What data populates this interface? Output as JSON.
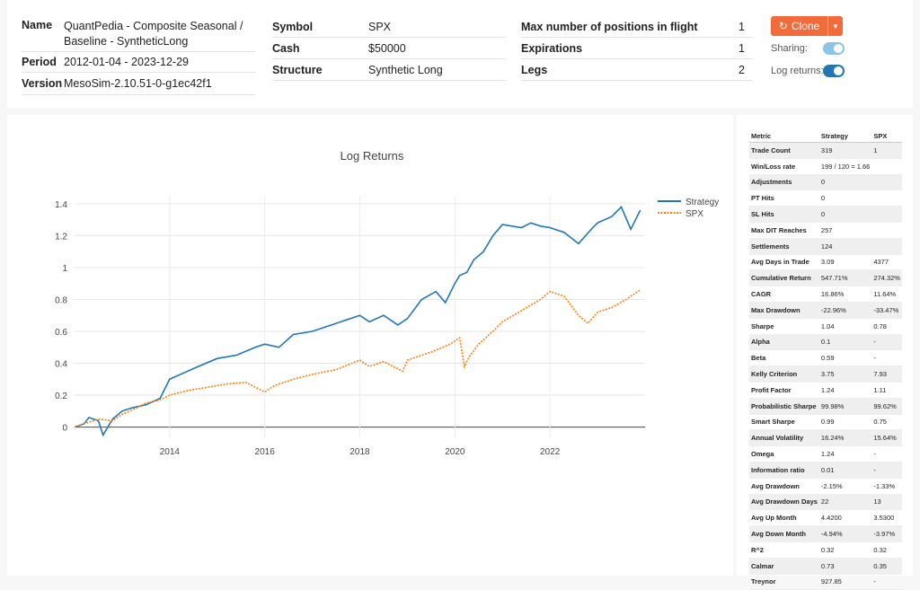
{
  "info": {
    "col1": [
      {
        "key": "Name",
        "value_line1": "QuantPedia - Composite Seasonal /",
        "value_line2": "Baseline - SyntheticLong"
      },
      {
        "key": "Period",
        "value": "2012-01-04 - 2023-12-29"
      },
      {
        "key": "Version",
        "value": "MesoSim-2.10.51-0-g1ec42f1"
      }
    ],
    "col2": [
      {
        "key": "Symbol",
        "value": "SPX"
      },
      {
        "key": "Cash",
        "value": "$50000"
      },
      {
        "key": "Structure",
        "value": "Synthetic Long"
      }
    ],
    "col3": [
      {
        "key": "Max number of positions in flight",
        "value": "1"
      },
      {
        "key": "Expirations",
        "value": "1"
      },
      {
        "key": "Legs",
        "value": "2"
      }
    ]
  },
  "controls": {
    "clone_label": "Clone",
    "sharing_label": "Sharing:",
    "log_returns_label": "Log returns:",
    "accent": "#f26b3a",
    "toggle_on_color": "#1f77b4",
    "toggle_sharing_color": "#8cc4e8"
  },
  "chart_data": {
    "type": "line",
    "title": "Log Returns",
    "xlabel": "",
    "ylabel": "",
    "xlim": [
      2012.0,
      2024.0
    ],
    "ylim": [
      -0.07,
      1.45
    ],
    "yticks": [
      0,
      0.2,
      0.4,
      0.6,
      0.8,
      1,
      1.2,
      1.4
    ],
    "ytick_labels": [
      "0",
      "0.2",
      "0.4",
      "0.6",
      "0.8",
      "1",
      "1.2",
      "1.4"
    ],
    "xticks": [
      2014,
      2016,
      2018,
      2020,
      2022
    ],
    "xtick_labels": [
      "2014",
      "2016",
      "2018",
      "2020",
      "2022"
    ],
    "grid": true,
    "legend": "top-right",
    "series": [
      {
        "name": "Strategy",
        "color": "#1f77b4",
        "style": "solid",
        "x": [
          2012.0,
          2012.2,
          2012.3,
          2012.5,
          2012.6,
          2012.8,
          2013.0,
          2013.2,
          2013.5,
          2013.8,
          2014.0,
          2014.3,
          2014.6,
          2015.0,
          2015.4,
          2015.8,
          2016.0,
          2016.3,
          2016.6,
          2017.0,
          2017.5,
          2018.0,
          2018.2,
          2018.5,
          2018.8,
          2019.0,
          2019.3,
          2019.6,
          2019.8,
          2020.0,
          2020.1,
          2020.25,
          2020.4,
          2020.6,
          2020.8,
          2021.0,
          2021.2,
          2021.4,
          2021.6,
          2021.8,
          2022.0,
          2022.3,
          2022.6,
          2022.9,
          2023.0,
          2023.3,
          2023.5,
          2023.7,
          2023.9
        ],
        "y": [
          0.0,
          0.02,
          0.06,
          0.04,
          -0.05,
          0.05,
          0.1,
          0.12,
          0.14,
          0.18,
          0.3,
          0.34,
          0.38,
          0.43,
          0.45,
          0.5,
          0.52,
          0.5,
          0.58,
          0.6,
          0.65,
          0.7,
          0.66,
          0.7,
          0.64,
          0.68,
          0.8,
          0.85,
          0.78,
          0.9,
          0.95,
          0.97,
          1.05,
          1.1,
          1.2,
          1.27,
          1.26,
          1.25,
          1.28,
          1.26,
          1.25,
          1.22,
          1.15,
          1.25,
          1.28,
          1.32,
          1.38,
          1.24,
          1.36
        ]
      },
      {
        "name": "SPX",
        "color": "#ff7f0e",
        "style": "dashed",
        "x": [
          2012.0,
          2012.3,
          2012.5,
          2012.8,
          2013.0,
          2013.3,
          2013.5,
          2013.8,
          2014.0,
          2014.4,
          2014.8,
          2015.2,
          2015.6,
          2016.0,
          2016.2,
          2016.6,
          2017.0,
          2017.5,
          2018.0,
          2018.2,
          2018.5,
          2018.9,
          2019.0,
          2019.5,
          2019.9,
          2020.1,
          2020.2,
          2020.3,
          2020.5,
          2020.8,
          2021.0,
          2021.4,
          2021.8,
          2022.0,
          2022.3,
          2022.6,
          2022.8,
          2023.0,
          2023.3,
          2023.6,
          2023.9
        ],
        "y": [
          0.0,
          0.03,
          0.05,
          0.04,
          0.08,
          0.12,
          0.15,
          0.17,
          0.2,
          0.23,
          0.25,
          0.27,
          0.28,
          0.22,
          0.26,
          0.3,
          0.33,
          0.36,
          0.42,
          0.38,
          0.41,
          0.35,
          0.42,
          0.47,
          0.52,
          0.56,
          0.38,
          0.44,
          0.52,
          0.6,
          0.66,
          0.73,
          0.8,
          0.85,
          0.82,
          0.7,
          0.65,
          0.72,
          0.75,
          0.8,
          0.86
        ]
      }
    ]
  },
  "metrics": {
    "headers": [
      "Metric",
      "Strategy",
      "SPX"
    ],
    "rows": [
      [
        "Trade Count",
        "319",
        "1"
      ],
      [
        "Win/Loss rate",
        "199 / 120 = 1.66",
        ""
      ],
      [
        "Adjustments",
        "0",
        ""
      ],
      [
        "PT Hits",
        "0",
        ""
      ],
      [
        "SL Hits",
        "0",
        ""
      ],
      [
        "Max DIT Reaches",
        "257",
        ""
      ],
      [
        "Settlements",
        "124",
        ""
      ],
      [
        "Avg Days in Trade",
        "3.09",
        "4377"
      ],
      [
        "Cumulative Return",
        "547.71%",
        "274.32%"
      ],
      [
        "CAGR",
        "16.86%",
        "11.64%"
      ],
      [
        "Max Drawdown",
        "-22.96%",
        "-33.47%"
      ],
      [
        "Sharpe",
        "1.04",
        "0.78"
      ],
      [
        "Alpha",
        "0.1",
        "-"
      ],
      [
        "Beta",
        "0.59",
        "-"
      ],
      [
        "Kelly Criterion",
        "3.75",
        "7.93"
      ],
      [
        "Profit Factor",
        "1.24",
        "1.11"
      ],
      [
        "Probabilistic Sharpe",
        "99.98%",
        "99.62%"
      ],
      [
        "Smart Sharpe",
        "0.99",
        "0.75"
      ],
      [
        "Annual Volatility",
        "16.24%",
        "15.64%"
      ],
      [
        "Omega",
        "1.24",
        "-"
      ],
      [
        "Information ratio",
        "0.01",
        "-"
      ],
      [
        "Avg Drawdown",
        "-2.15%",
        "-1.33%"
      ],
      [
        "Avg Drawdown Days",
        "22",
        "13"
      ],
      [
        "Avg Up Month",
        "4.4200",
        "3.5300"
      ],
      [
        "Avg Down Month",
        "-4.94%",
        "-3.97%"
      ],
      [
        "R^2",
        "0.32",
        "0.32"
      ],
      [
        "Calmar",
        "0.73",
        "0.35"
      ],
      [
        "Treynor",
        "927.85",
        "-"
      ]
    ]
  }
}
